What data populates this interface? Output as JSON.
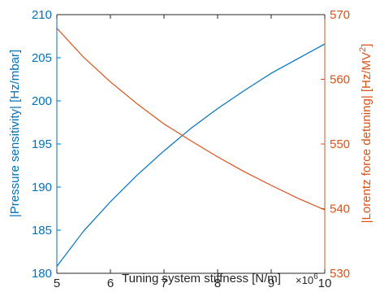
{
  "chart_data": {
    "type": "line",
    "title": "",
    "xlabel": "Tuning system stiffness [N/m]",
    "x_exponent_label": "×10",
    "x_exponent": "6",
    "ylabel_left": "|Pressure sensitivity| [Hz/mbar]",
    "ylabel_right_main": "|Lorentz force detuning| [Hz/MV",
    "ylabel_right_sup": "2",
    "ylabel_right_tail": "]",
    "xlim": [
      5,
      10
    ],
    "ylim_left": [
      180,
      210
    ],
    "ylim_right": [
      530,
      570
    ],
    "xticks": [
      "5",
      "6",
      "7",
      "8",
      "9",
      "10"
    ],
    "yticks_left": [
      "180",
      "185",
      "190",
      "195",
      "200",
      "205",
      "210"
    ],
    "yticks_right": [
      "530",
      "540",
      "550",
      "560",
      "570"
    ],
    "grid": false,
    "colors": {
      "left": "#0072BD",
      "right": "#D95319",
      "axis": "#262626"
    },
    "series": [
      {
        "axis": "left",
        "x": [
          5,
          5.5,
          6,
          6.5,
          7,
          7.5,
          8,
          8.5,
          9,
          9.5,
          10
        ],
        "values": [
          180.8,
          184.9,
          188.3,
          191.4,
          194.2,
          196.8,
          199.1,
          201.2,
          203.2,
          204.9,
          206.6
        ]
      },
      {
        "axis": "right",
        "x": [
          5,
          5.5,
          6,
          6.5,
          7,
          7.5,
          8,
          8.5,
          9,
          9.5,
          10
        ],
        "values": [
          567.9,
          563.4,
          559.6,
          556.2,
          553.1,
          550.5,
          548.0,
          545.7,
          543.6,
          541.6,
          539.8
        ]
      }
    ]
  }
}
